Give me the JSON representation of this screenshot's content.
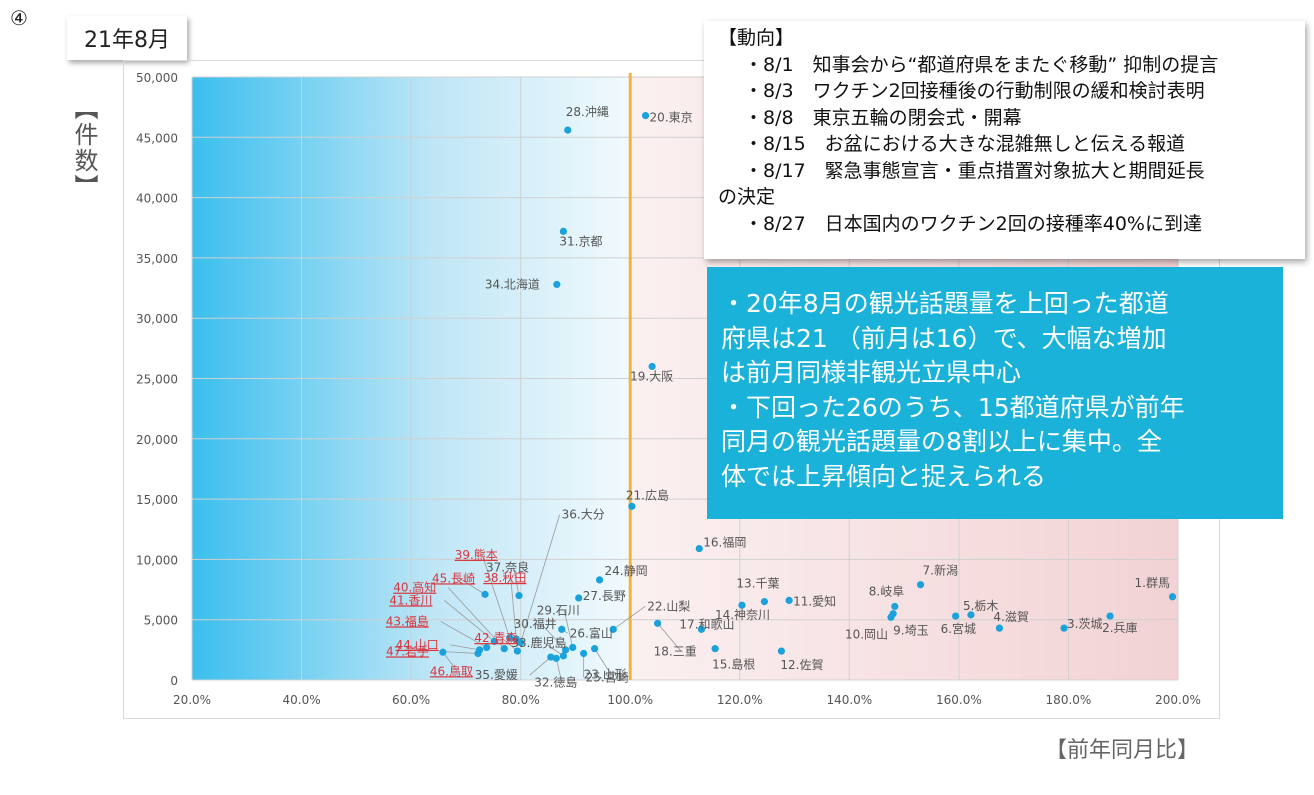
{
  "slide_number": "④",
  "month_label": "21年8月",
  "y_axis_label": "【件数】",
  "x_axis_label": "【前年同月比】",
  "trends": {
    "heading": "【動向】",
    "items": [
      "・8/1　知事会から“都道府県をまたぐ移動” 抑制の提言",
      "・8/3　ワクチン2回接種後の行動制限の緩和検討表明",
      "・8/8　東京五輪の閉会式・開幕",
      "・8/15　お盆における大きな混雑無しと伝える報道",
      "・8/17　緊急事態宣言・重点措置対象拡大と期間延長",
      "の決定",
      "・8/27　日本国内のワクチン2回の接種率40%に到達"
    ]
  },
  "summary": {
    "lines": [
      "・20年8月の観光話題量を上回った都道",
      "府県は21 （前月は16）で、大幅な増加",
      "は前月同様非観光立県中心",
      "・下回った26のうち、15都道府県が前年",
      "同月の観光話題量の8割以上に集中。全",
      "体では上昇傾向と捉えられる"
    ]
  },
  "colors": {
    "point": "#1ba1dc",
    "reference_line": "#f0b43c",
    "left_zone_start": "#3bbfee",
    "right_zone": "#f2d2d4",
    "highlight_label": "#d9363e",
    "label": "#555555"
  },
  "chart_data": {
    "type": "scatter",
    "xlim": [
      0.2,
      2.0
    ],
    "ylim": [
      0,
      50000
    ],
    "x_ticks": [
      "20.0%",
      "40.0%",
      "60.0%",
      "80.0%",
      "100.0%",
      "120.0%",
      "140.0%",
      "160.0%",
      "180.0%",
      "200.0%"
    ],
    "y_ticks": [
      "0",
      "5,000",
      "10,000",
      "15,000",
      "20,000",
      "25,000",
      "30,000",
      "35,000",
      "40,000",
      "45,000",
      "50,000"
    ],
    "reference_x": 1.0,
    "grid": true,
    "points": [
      {
        "label": "20.東京",
        "x": 1.028,
        "y": 46800
      },
      {
        "label": "28.沖縄",
        "x": 0.886,
        "y": 45600
      },
      {
        "label": "31.京都",
        "x": 0.878,
        "y": 37200
      },
      {
        "label": "34.北海道",
        "x": 0.866,
        "y": 32800
      },
      {
        "label": "19.大阪",
        "x": 1.04,
        "y": 26000
      },
      {
        "label": "21.広島",
        "x": 1.003,
        "y": 14400
      },
      {
        "label": "16.福岡",
        "x": 1.126,
        "y": 10900
      },
      {
        "label": "7.新潟",
        "x": 1.53,
        "y": 7900
      },
      {
        "label": "1.群馬",
        "x": 1.99,
        "y": 6900
      },
      {
        "label": "13.千葉",
        "x": 1.245,
        "y": 6500
      },
      {
        "label": "11.愛知",
        "x": 1.29,
        "y": 6600
      },
      {
        "label": "8.岐阜",
        "x": 1.483,
        "y": 6100
      },
      {
        "label": "5.栃木",
        "x": 1.622,
        "y": 5400
      },
      {
        "label": "3.茨城",
        "x": 1.792,
        "y": 4300
      },
      {
        "label": "2.兵庫",
        "x": 1.876,
        "y": 5300
      },
      {
        "label": "4.滋賀",
        "x": 1.674,
        "y": 4300
      },
      {
        "label": "10.岡山",
        "x": 1.476,
        "y": 5200
      },
      {
        "label": "9.埼玉",
        "x": 1.48,
        "y": 5500
      },
      {
        "label": "6.宮城",
        "x": 1.594,
        "y": 5300
      },
      {
        "label": "17.和歌山",
        "x": 1.13,
        "y": 4200
      },
      {
        "label": "14.神奈川",
        "x": 1.204,
        "y": 6200
      },
      {
        "label": "15.島根",
        "x": 1.155,
        "y": 2600
      },
      {
        "label": "12.佐賀",
        "x": 1.276,
        "y": 2400
      },
      {
        "label": "18.三重",
        "x": 1.05,
        "y": 4700
      },
      {
        "label": "22.山梨",
        "x": 0.969,
        "y": 4200
      },
      {
        "label": "23.山形",
        "x": 0.935,
        "y": 2600
      },
      {
        "label": "24.静岡",
        "x": 0.944,
        "y": 8300
      },
      {
        "label": "25.宮崎",
        "x": 0.915,
        "y": 2200
      },
      {
        "label": "26.富山",
        "x": 0.875,
        "y": 4200
      },
      {
        "label": "27.長野",
        "x": 0.906,
        "y": 6800
      },
      {
        "label": "29.石川",
        "x": 0.895,
        "y": 2700
      },
      {
        "label": "30.福井",
        "x": 0.882,
        "y": 2500
      },
      {
        "label": "32.徳島",
        "x": 0.865,
        "y": 1800
      },
      {
        "label": "33.鹿児島",
        "x": 0.878,
        "y": 2000
      },
      {
        "label": "35.愛媛",
        "x": 0.855,
        "y": 1900
      },
      {
        "label": "36.大分",
        "x": 0.8,
        "y": 3100
      },
      {
        "label": "37.奈良",
        "x": 0.797,
        "y": 7000
      },
      {
        "label": "38.秋田",
        "x": 0.792,
        "y": 3400
      },
      {
        "label": "39.熊本",
        "x": 0.78,
        "y": 3500
      },
      {
        "label": "40.高知",
        "x": 0.77,
        "y": 2600
      },
      {
        "label": "41.香川",
        "x": 0.752,
        "y": 3200
      },
      {
        "label": "42.青森",
        "x": 0.794,
        "y": 2400
      },
      {
        "label": "43.福島",
        "x": 0.738,
        "y": 2700
      },
      {
        "label": "44.山口",
        "x": 0.725,
        "y": 2500
      },
      {
        "label": "45.長崎",
        "x": 0.735,
        "y": 7100
      },
      {
        "label": "46.鳥取",
        "x": 0.658,
        "y": 2300
      },
      {
        "label": "47.岩手",
        "x": 0.722,
        "y": 2200
      }
    ]
  }
}
